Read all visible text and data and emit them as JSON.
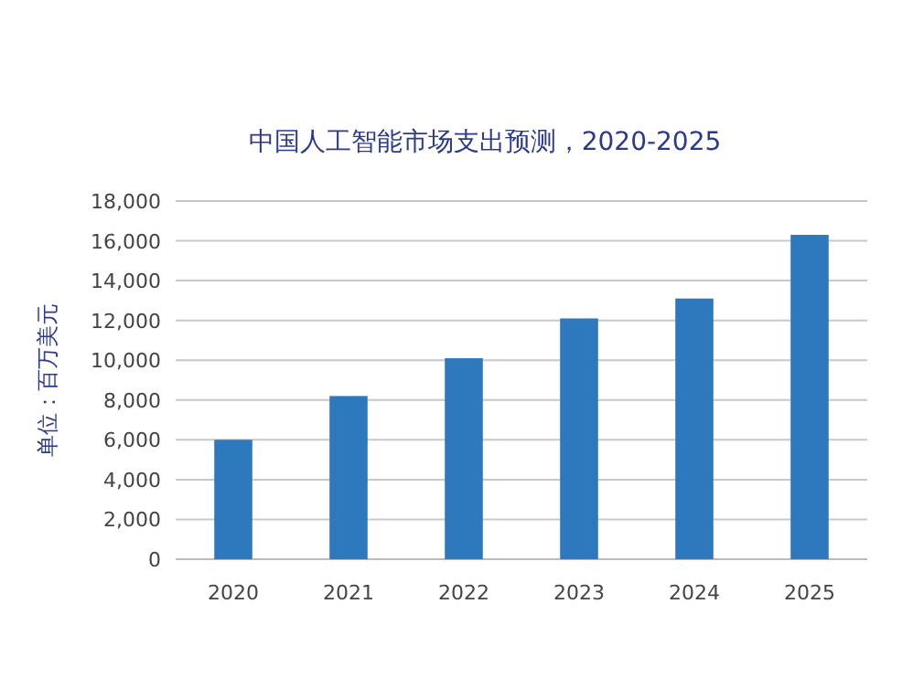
{
  "chart_data": {
    "type": "bar",
    "title": "中国人工智能市场支出预测，2020-2025",
    "ylabel": "单位：百万美元",
    "categories": [
      "2020",
      "2021",
      "2022",
      "2023",
      "2024",
      "2025"
    ],
    "values": [
      6000,
      8200,
      10100,
      12100,
      13100,
      16300
    ],
    "color": "#2e78bd",
    "ylim": [
      0,
      18000
    ],
    "yticks": [
      {
        "value": 0,
        "label": "0"
      },
      {
        "value": 2000,
        "label": "2,000"
      },
      {
        "value": 4000,
        "label": "4,000"
      },
      {
        "value": 6000,
        "label": "6,000"
      },
      {
        "value": 8000,
        "label": "8,000"
      },
      {
        "value": 10000,
        "label": "10,000"
      },
      {
        "value": 12000,
        "label": "12,000"
      },
      {
        "value": 14000,
        "label": "14,000"
      },
      {
        "value": 16000,
        "label": "16,000"
      },
      {
        "value": 18000,
        "label": "18,000"
      }
    ],
    "grid": "y"
  }
}
